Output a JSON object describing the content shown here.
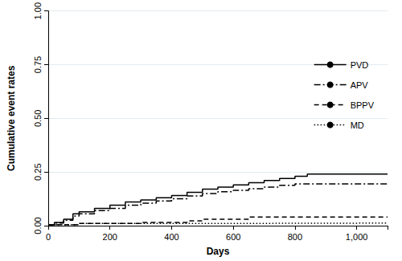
{
  "chart_data": {
    "type": "line",
    "x_label": "Days",
    "y_label": "Cumulative event rates",
    "xlim": [
      0,
      1100
    ],
    "xticks": [
      0,
      200,
      400,
      600,
      800,
      {
        "value": 1000,
        "label": "1,000"
      }
    ],
    "ylim": [
      0,
      1
    ],
    "yticks": [
      {
        "value": 0,
        "label": "0.00"
      },
      {
        "value": 0.25,
        "label": "0.25"
      },
      {
        "value": 0.5,
        "label": "0.50"
      },
      {
        "value": 0.75,
        "label": "0.75"
      },
      {
        "value": 1,
        "label": "1.00"
      }
    ],
    "grid": true,
    "legend": "right",
    "series": [
      {
        "name": "PVD",
        "color": "#000000",
        "line_style": "solid",
        "x": [
          0,
          20,
          50,
          80,
          100,
          150,
          200,
          250,
          300,
          350,
          400,
          450,
          500,
          550,
          600,
          650,
          700,
          750,
          800,
          840,
          1100
        ],
        "values": [
          0.005,
          0.015,
          0.03,
          0.055,
          0.065,
          0.08,
          0.095,
          0.11,
          0.12,
          0.13,
          0.14,
          0.155,
          0.17,
          0.18,
          0.19,
          0.2,
          0.21,
          0.22,
          0.23,
          0.24,
          0.24
        ]
      },
      {
        "name": "APV",
        "color": "#000000",
        "line_style": "dashdot",
        "x": [
          0,
          20,
          50,
          80,
          100,
          150,
          200,
          250,
          300,
          350,
          400,
          450,
          500,
          550,
          600,
          650,
          700,
          750,
          800,
          1100
        ],
        "values": [
          0.005,
          0.012,
          0.025,
          0.045,
          0.055,
          0.07,
          0.08,
          0.095,
          0.105,
          0.115,
          0.125,
          0.138,
          0.15,
          0.158,
          0.165,
          0.172,
          0.18,
          0.188,
          0.195,
          0.195
        ]
      },
      {
        "name": "BPPV",
        "color": "#000000",
        "line_style": "dashed",
        "x": [
          0,
          100,
          300,
          450,
          500,
          650,
          1100
        ],
        "values": [
          0.005,
          0.01,
          0.015,
          0.022,
          0.03,
          0.04,
          0.04
        ]
      },
      {
        "name": "MD",
        "color": "#000000",
        "line_style": "dotted",
        "x": [
          0,
          100,
          500,
          1100
        ],
        "values": [
          0.005,
          0.01,
          0.012,
          0.012
        ]
      }
    ]
  }
}
